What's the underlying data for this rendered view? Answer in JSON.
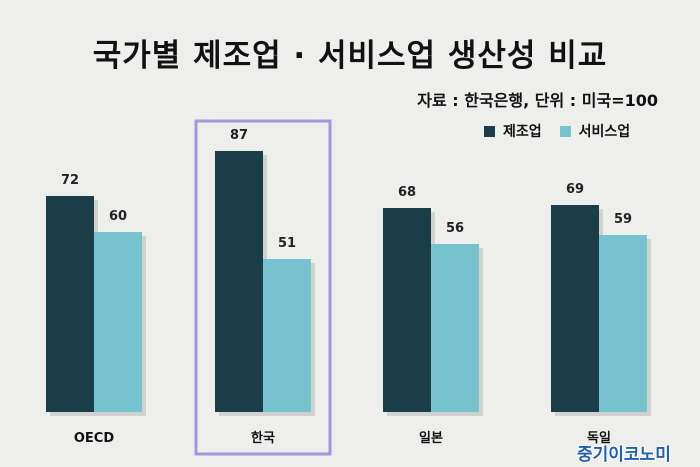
{
  "chart_data": {
    "type": "bar",
    "title": "국가별 제조업 · 서비스업 생산성 비교",
    "subtitle": "자료 : 한국은행, 단위 : 미국=100",
    "categories": [
      "OECD",
      "한국",
      "일본",
      "독일"
    ],
    "series": [
      {
        "name": "제조업",
        "values": [
          72,
          87,
          68,
          69
        ],
        "color": "#1b3d47"
      },
      {
        "name": "서비스업",
        "values": [
          60,
          51,
          56,
          59
        ],
        "color": "#76c3cf"
      }
    ],
    "highlight_category": "한국",
    "highlight_color": "#9d98e0",
    "ylim": [
      0,
      100
    ],
    "grid": false,
    "legend_position": "top-right"
  },
  "watermark": "중기이코노미"
}
